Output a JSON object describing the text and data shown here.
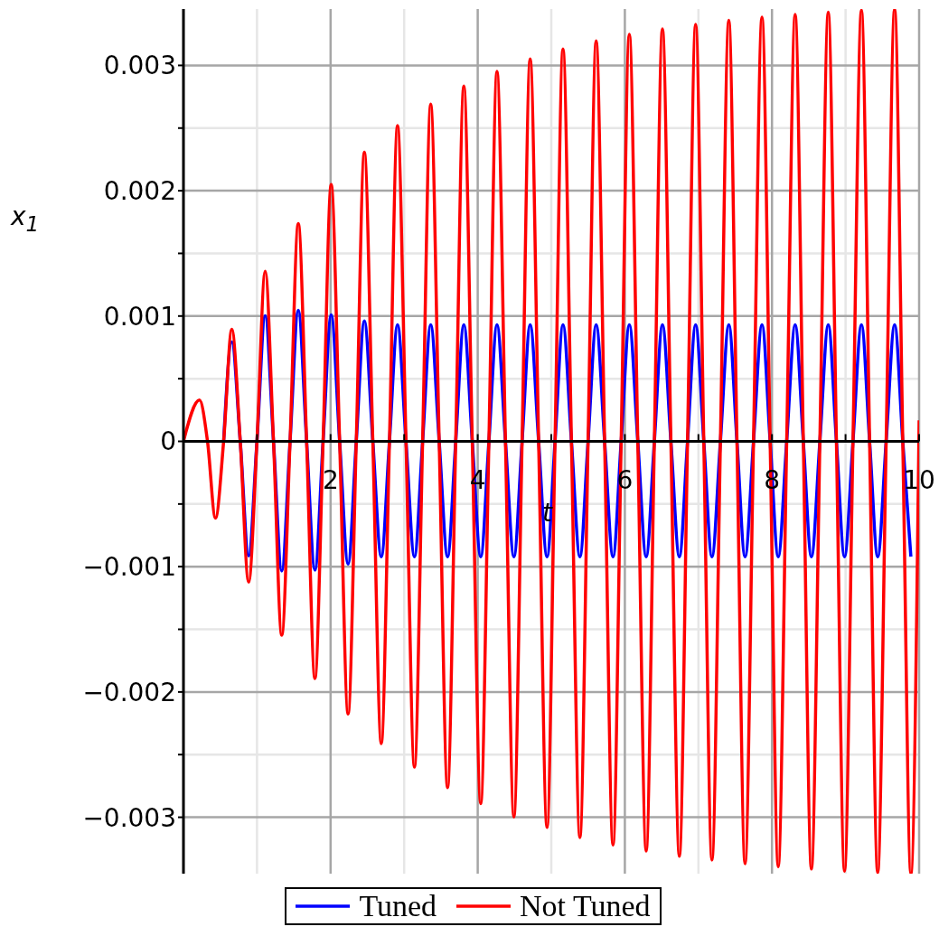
{
  "chart_data": {
    "type": "line",
    "xlabel": "t",
    "ylabel": "x$_{1}$",
    "x": [
      0,
      0.218,
      0.327,
      0.435,
      0.546,
      0.657,
      0.772,
      0.886,
      0.999,
      1.111,
      1.224,
      1.336,
      1.449,
      1.561,
      1.674,
      1.787,
      1.898,
      2.008,
      2.123,
      2.238,
      2.349,
      2.459,
      2.574,
      2.689,
      2.8,
      2.91,
      3.025,
      3.14,
      3.251,
      3.361,
      3.476,
      3.59,
      3.701,
      3.811,
      3.926,
      4.041,
      4.152,
      4.262,
      4.377,
      4.492,
      4.603,
      4.713,
      4.828,
      4.942,
      5.051,
      5.159,
      5.274,
      5.389,
      5.5,
      5.61,
      5.725,
      5.839,
      5.95,
      6.061,
      6.176,
      6.29,
      6.401,
      6.511,
      6.626,
      6.741,
      6.852,
      6.962,
      7.073,
      7.184,
      7.299,
      7.413,
      7.524,
      7.634,
      7.749,
      7.864,
      7.975,
      8.085,
      8.2,
      8.315,
      8.426,
      8.536,
      8.651,
      8.765,
      8.876,
      8.986,
      9.101,
      9.216,
      9.327,
      9.437,
      9.552,
      9.667,
      9.778,
      9.888,
      10
    ],
    "series": [
      {
        "name": "Tuned",
        "color": "#0000ff",
        "values": [
          null,
          null,
          null,
          null,
          0,
          0.000793,
          0,
          -0.000913,
          0,
          0.001002,
          0,
          -0.001034,
          0,
          0.001045,
          0,
          -0.001027,
          0,
          0.001009,
          0,
          -0.000978,
          0,
          0.000961,
          0,
          -0.000921,
          0,
          0.00093,
          0,
          -0.000921,
          0,
          0.00093,
          0,
          -0.000921,
          0,
          0.00093,
          0,
          -0.000921,
          0,
          0.00093,
          0,
          -0.000921,
          0,
          0.00093,
          0,
          -0.000921,
          0,
          0.00093,
          0,
          -0.000921,
          0,
          0.00093,
          0,
          -0.000921,
          0,
          0.00093,
          0,
          -0.000921,
          0,
          0.00093,
          0,
          -0.000921,
          0,
          0.00093,
          0,
          -0.000921,
          0,
          0.00093,
          0,
          -0.000921,
          0,
          0.00093,
          0,
          -0.000921,
          0,
          0.00093,
          0,
          -0.000921,
          0,
          0.00093,
          0,
          -0.000921,
          0,
          0.00093,
          0,
          -0.000921,
          0,
          0.00093,
          0,
          -0.000921,
          null
        ]
      },
      {
        "name": "Not Tuned",
        "color": "#ff0000",
        "values": [
          0,
          0.000329,
          0,
          -0.000613,
          0,
          0.000894,
          0,
          -0.001123,
          0,
          0.001358,
          0,
          -0.001546,
          0,
          0.001738,
          0,
          -0.001892,
          0,
          0.00205,
          0,
          -0.002175,
          0,
          0.002307,
          0,
          -0.002411,
          0,
          0.00252,
          0,
          -0.0026,
          0,
          0.002691,
          0,
          -0.002764,
          0,
          0.002836,
          0,
          -0.002891,
          0,
          0.002953,
          0,
          -0.002997,
          0,
          0.003052,
          0,
          -0.003081,
          0,
          0.003131,
          0,
          -0.003161,
          0,
          0.003196,
          0,
          -0.003221,
          0,
          0.003249,
          0,
          -0.003269,
          0,
          0.003292,
          0,
          -0.003312,
          0,
          0.003328,
          0,
          -0.003341,
          0,
          0.00336,
          0,
          -0.00337,
          0,
          0.003386,
          0,
          -0.003394,
          0,
          0.003407,
          0,
          -0.003413,
          0,
          0.003425,
          0,
          -0.00343,
          0,
          0.003441,
          0,
          -0.003442,
          0,
          0.00345,
          0,
          -0.00345,
          0.000168
        ]
      }
    ],
    "xlim": [
      0,
      10
    ],
    "xticks": [
      {
        "value": 0,
        "label": null
      },
      {
        "value": 1,
        "label": null
      },
      2,
      {
        "value": 3,
        "label": null
      },
      4,
      {
        "value": 5,
        "label": null
      },
      6,
      {
        "value": 7,
        "label": null
      },
      8,
      {
        "value": 9,
        "label": null
      },
      10
    ],
    "ylim": [
      -0.00345,
      0.00345
    ],
    "yticks": [
      {
        "value": -0.003,
        "label": "−0.003"
      },
      {
        "value": -0.0025,
        "label": null
      },
      {
        "value": -0.002,
        "label": "−0.002"
      },
      {
        "value": -0.0015,
        "label": null
      },
      {
        "value": -0.001,
        "label": "−0.001"
      },
      {
        "value": -0.0005,
        "label": null
      },
      0,
      {
        "value": 0.0005,
        "label": null
      },
      0.001,
      {
        "value": 0.0015,
        "label": null
      },
      0.002,
      {
        "value": 0.0025,
        "label": null
      },
      0.003
    ],
    "grid": true,
    "legend": "bottom",
    "marker": "none",
    "line_style": "solid"
  }
}
